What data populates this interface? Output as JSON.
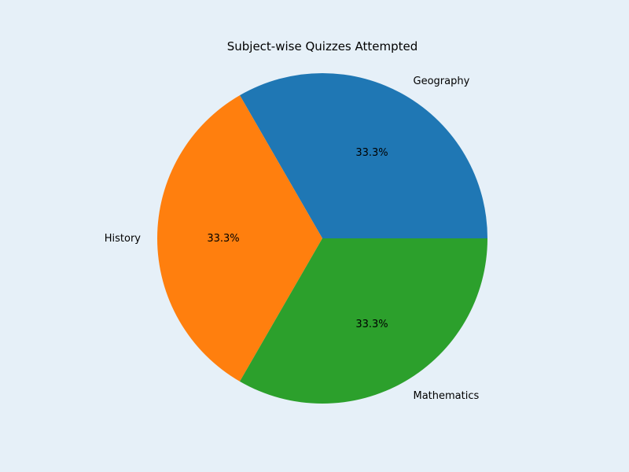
{
  "chart_data": {
    "type": "pie",
    "title": "Subject-wise Quizzes Attempted",
    "categories": [
      "Geography",
      "History",
      "Mathematics"
    ],
    "values": [
      1,
      1,
      1
    ],
    "percent_labels": [
      "33.3%",
      "33.3%",
      "33.3%"
    ],
    "colors": [
      "#1f77b4",
      "#ff7f0e",
      "#2ca02c"
    ],
    "start_angle_deg": 0,
    "direction": "counterclockwise"
  }
}
